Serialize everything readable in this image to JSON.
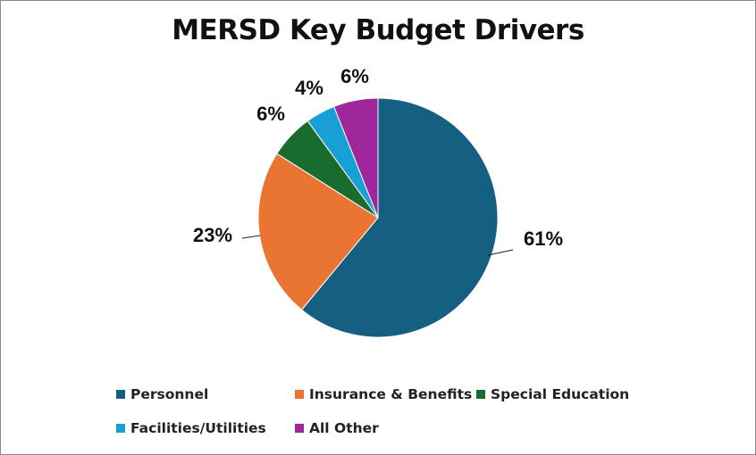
{
  "chart_data": {
    "type": "pie",
    "title": "MERSD Key Budget Drivers",
    "categories": [
      "Personnel",
      "Insurance & Benefits",
      "Special Education",
      "Facilities/Utilities",
      "All Other"
    ],
    "values": [
      61,
      23,
      6,
      4,
      6
    ],
    "data_labels": [
      "61%",
      "23%",
      "6%",
      "4%",
      "6%"
    ],
    "colors": [
      "#155F83",
      "#EA7533",
      "#1A6B2E",
      "#18A0D6",
      "#A0269C"
    ],
    "start_angle_deg": 0,
    "direction": "clockwise",
    "legend_position": "bottom"
  }
}
